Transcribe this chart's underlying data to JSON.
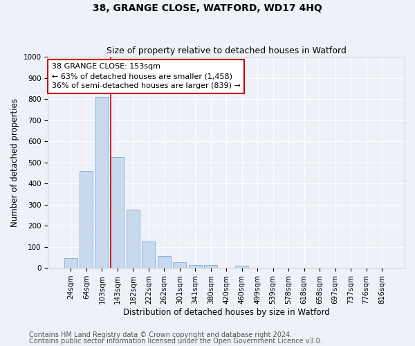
{
  "title": "38, GRANGE CLOSE, WATFORD, WD17 4HQ",
  "subtitle": "Size of property relative to detached houses in Watford",
  "xlabel": "Distribution of detached houses by size in Watford",
  "ylabel": "Number of detached properties",
  "footnote1": "Contains HM Land Registry data © Crown copyright and database right 2024.",
  "footnote2": "Contains public sector information licensed under the Open Government Licence v3.0.",
  "bar_labels": [
    "24sqm",
    "64sqm",
    "103sqm",
    "143sqm",
    "182sqm",
    "222sqm",
    "262sqm",
    "301sqm",
    "341sqm",
    "380sqm",
    "420sqm",
    "460sqm",
    "499sqm",
    "539sqm",
    "578sqm",
    "618sqm",
    "658sqm",
    "697sqm",
    "737sqm",
    "776sqm",
    "816sqm"
  ],
  "bar_values": [
    45,
    460,
    810,
    525,
    275,
    125,
    57,
    25,
    15,
    15,
    0,
    10,
    0,
    0,
    0,
    0,
    0,
    0,
    0,
    0,
    0
  ],
  "bar_color": "#c9d9ed",
  "bar_edge_color": "#7aaad0",
  "highlight_index": 3,
  "highlight_line_color": "#cc0000",
  "annotation_text": "38 GRANGE CLOSE: 153sqm\n← 63% of detached houses are smaller (1,458)\n36% of semi-detached houses are larger (839) →",
  "annotation_box_color": "#ffffff",
  "annotation_box_edge_color": "#cc0000",
  "ylim": [
    0,
    1000
  ],
  "yticks": [
    0,
    100,
    200,
    300,
    400,
    500,
    600,
    700,
    800,
    900,
    1000
  ],
  "background_color": "#eef2f8",
  "grid_color": "#ffffff",
  "title_fontsize": 10,
  "subtitle_fontsize": 9,
  "axis_label_fontsize": 8.5,
  "tick_fontsize": 7.5,
  "annotation_fontsize": 8,
  "footnote_fontsize": 7
}
